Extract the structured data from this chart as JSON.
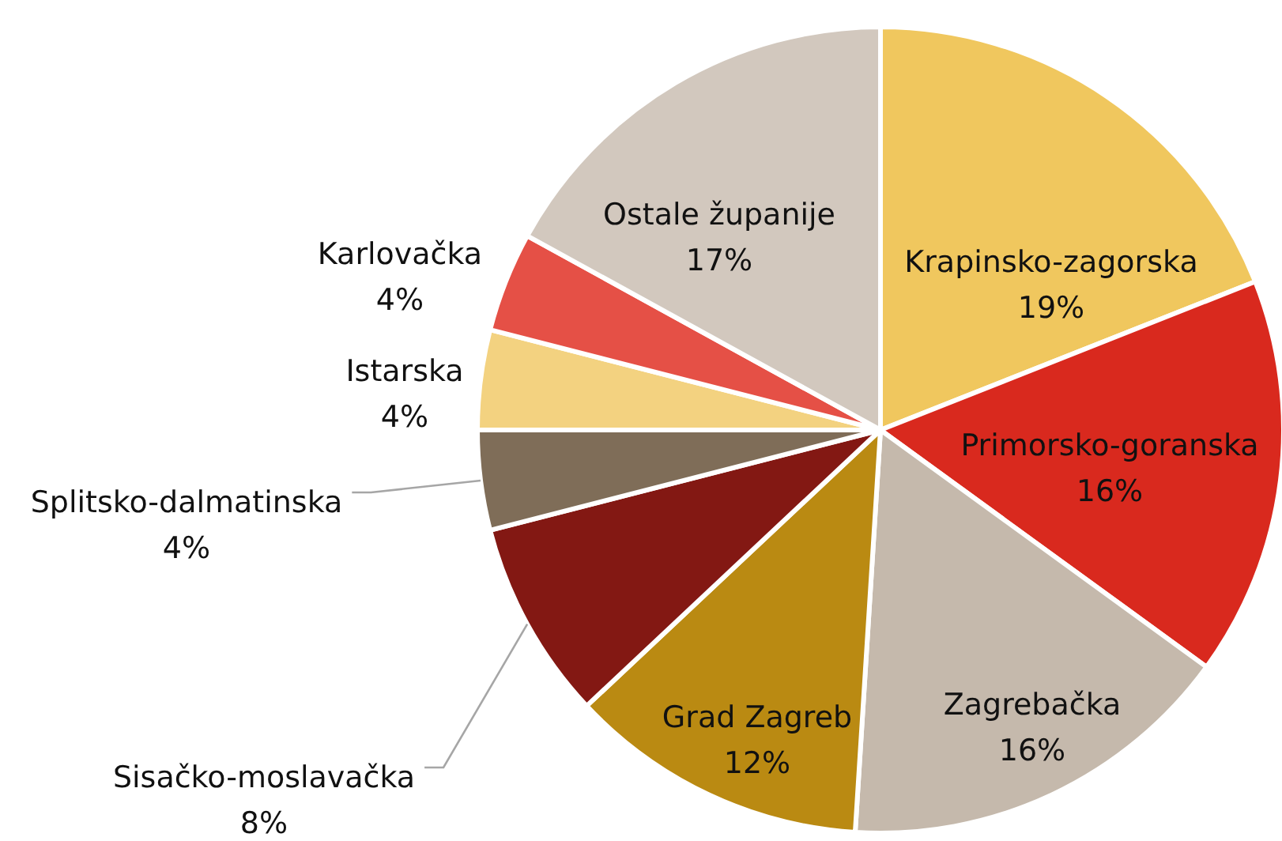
{
  "chart_data": {
    "type": "pie",
    "categories": [
      "Krapinsko-zagorska",
      "Primorsko-goranska",
      "Zagrebačka",
      "Grad Zagreb",
      "Sisačko-moslavačka",
      "Splitsko-dalmatinska",
      "Istarska",
      "Karlovačka",
      "Ostale županije"
    ],
    "values": [
      19,
      16,
      16,
      12,
      8,
      4,
      4,
      4,
      17
    ],
    "colors": [
      "#f0c75e",
      "#d9291e",
      "#c5b9ac",
      "#ba8a12",
      "#831813",
      "#7f6d58",
      "#f3d280",
      "#e55046",
      "#d2c8be"
    ],
    "value_labels": [
      "19%",
      "16%",
      "16%",
      "12%",
      "8%",
      "4%",
      "4%",
      "4%",
      "17%"
    ]
  }
}
